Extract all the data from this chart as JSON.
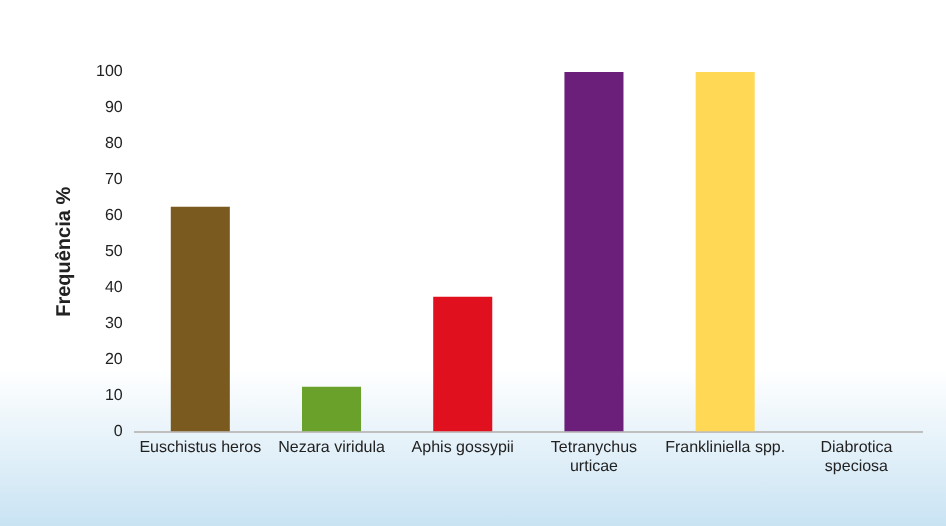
{
  "chart_data": {
    "type": "bar",
    "ylabel": "Frequência %",
    "categories": [
      "Euschistus heros",
      "Nezara viridula",
      "Aphis gossypii",
      "Tetranychus urticae",
      "Frankliniella spp.",
      "Diabrotica speciosa"
    ],
    "values": [
      62.5,
      12.5,
      37.5,
      100,
      100,
      0
    ],
    "colors": [
      "#7b5a1f",
      "#6aa12b",
      "#e0101e",
      "#6b1f7b",
      "#ffd855",
      "#4f81bd"
    ],
    "ylim": [
      0,
      100
    ],
    "yticks": [
      0,
      10,
      20,
      30,
      40,
      50,
      60,
      70,
      80,
      90,
      100
    ],
    "grid": false,
    "legend": false
  }
}
